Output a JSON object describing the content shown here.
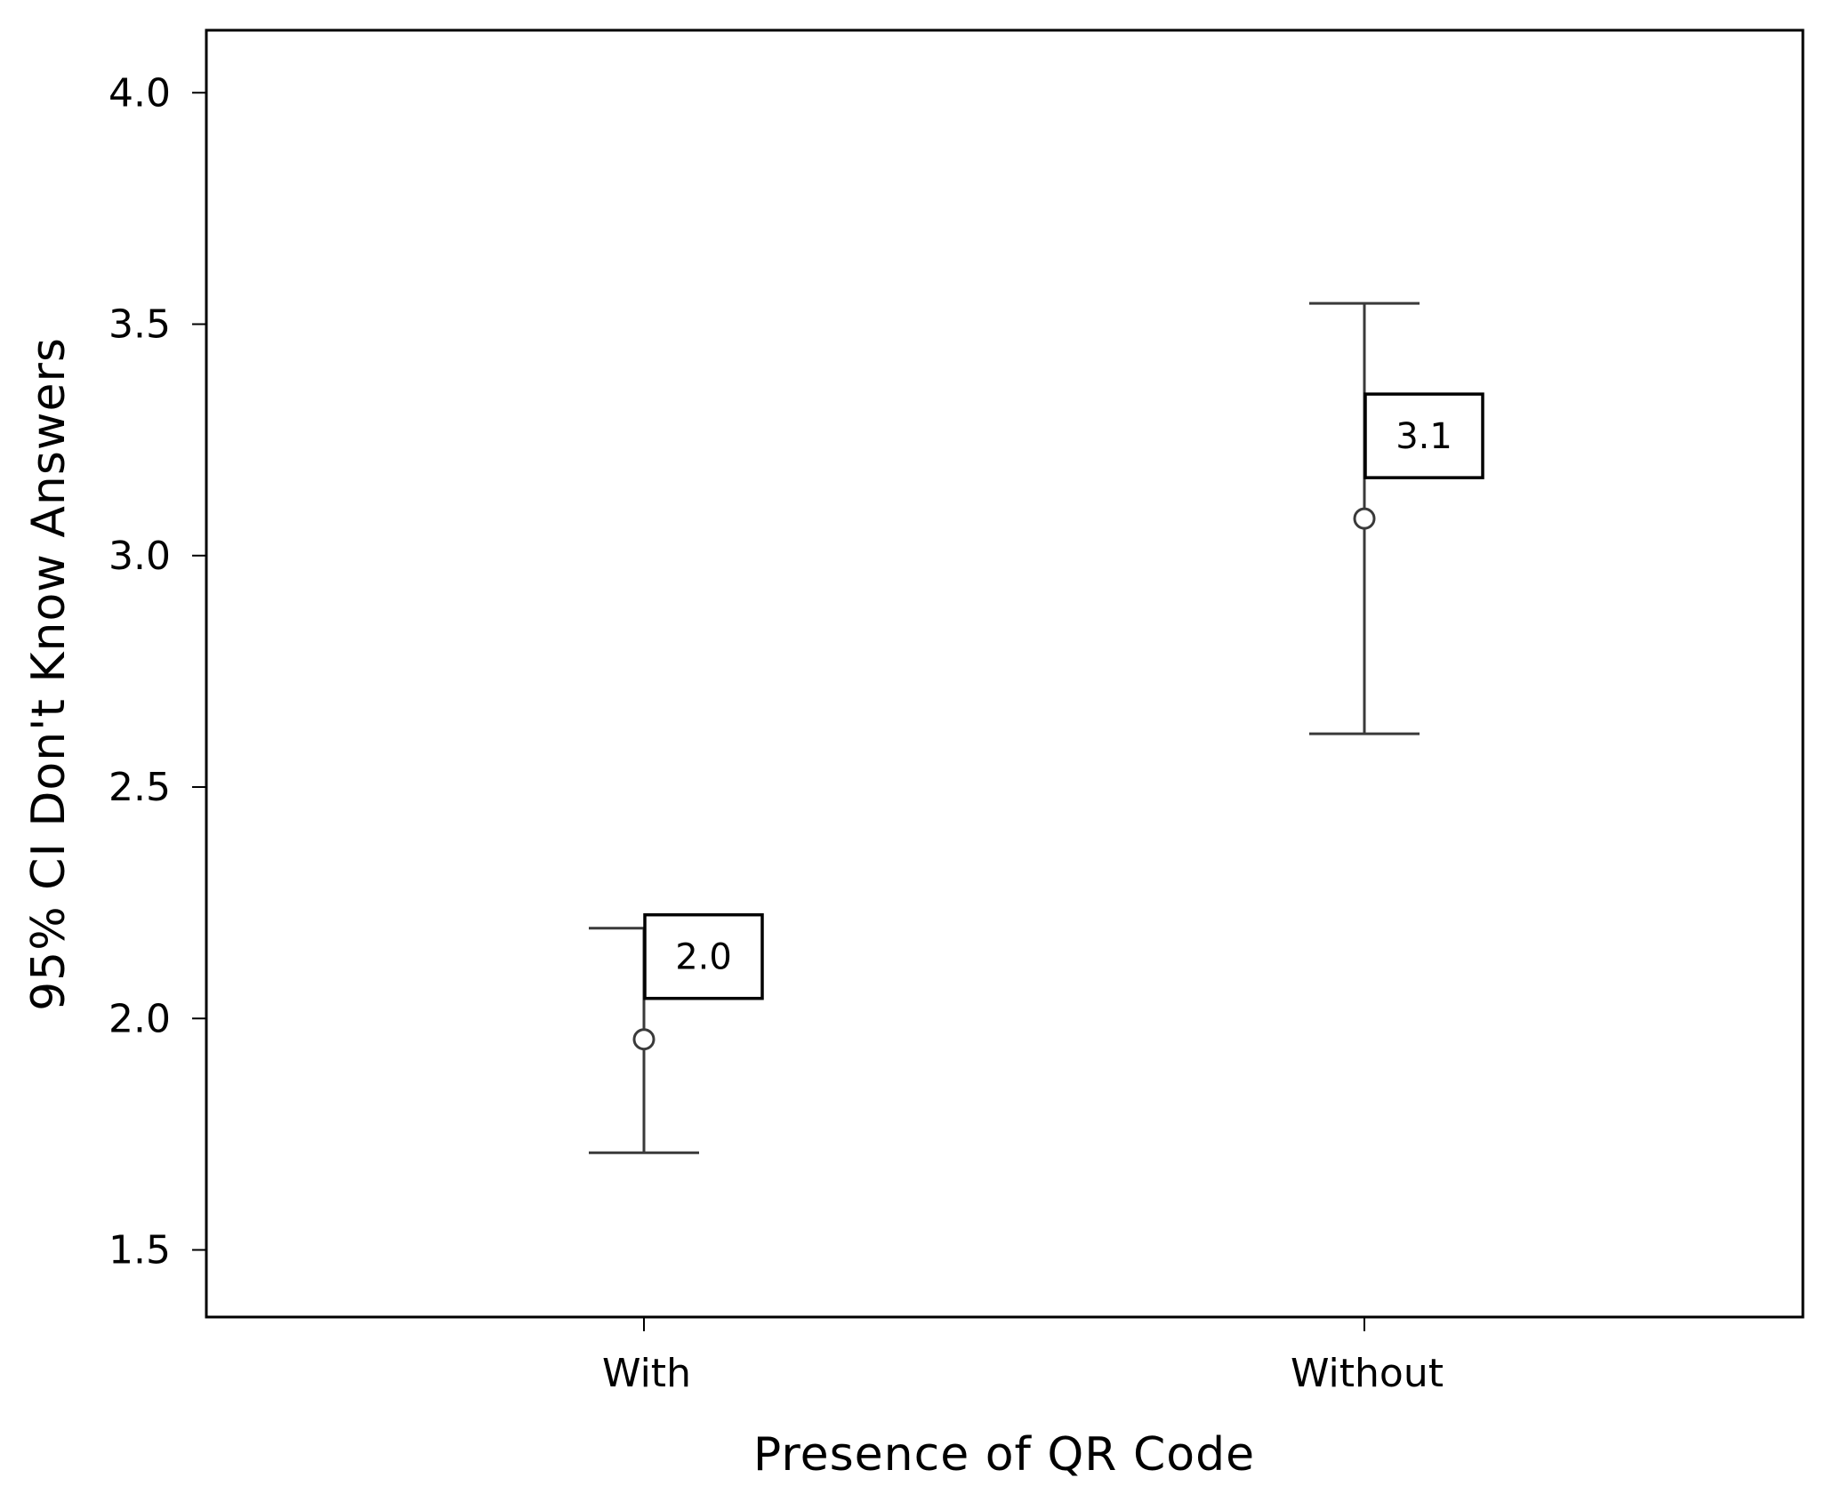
{
  "chart_data": {
    "type": "errorbar",
    "xlabel": "Presence of QR Code",
    "ylabel": "95% CI Don't Know Answers",
    "ylim": [
      1.355,
      4.135
    ],
    "yticks": [
      1.5,
      2.0,
      2.5,
      3.0,
      3.5,
      4.0
    ],
    "ytick_labels": [
      "1.5",
      "2.0",
      "2.5",
      "3.0",
      "3.5",
      "4.0"
    ],
    "grid": false,
    "categories": [
      "With",
      "Without"
    ],
    "points": [
      {
        "category": "With",
        "mean": 1.955,
        "lower": 1.71,
        "upper": 2.195,
        "label": "2.0"
      },
      {
        "category": "Without",
        "mean": 3.08,
        "lower": 2.615,
        "upper": 3.545,
        "label": "3.1"
      }
    ]
  }
}
